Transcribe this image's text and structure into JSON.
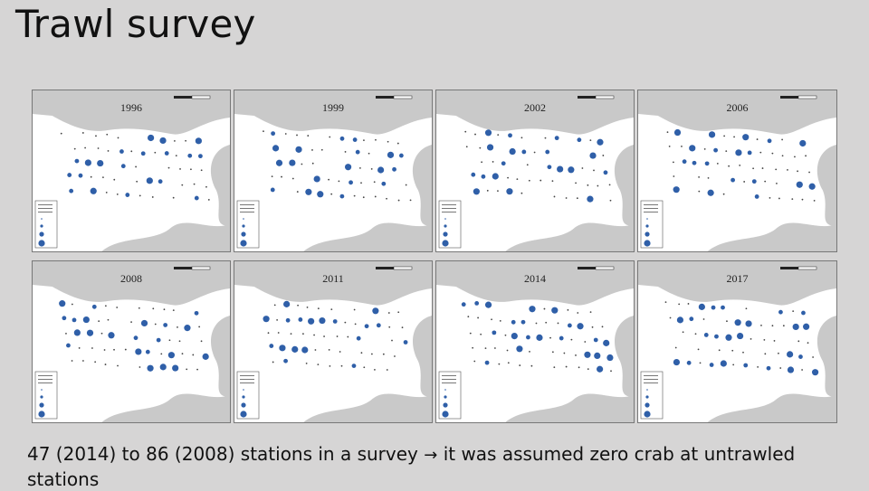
{
  "slide": {
    "title": "Trawl survey",
    "caption_before": "47 (2014) to 86 (2008) stations in a survey",
    "caption_arrow": "→",
    "caption_after": " it was assumed zero crab at untrawled stations"
  },
  "maps": [
    {
      "year": "1996"
    },
    {
      "year": "1999"
    },
    {
      "year": "2002"
    },
    {
      "year": "2006"
    },
    {
      "year": "2008"
    },
    {
      "year": "2011"
    },
    {
      "year": "2014"
    },
    {
      "year": "2017"
    }
  ],
  "colors": {
    "background": "#d6d5d5",
    "land": "#c9c9c9",
    "water": "#ffffff",
    "station": "#2f5fa8"
  }
}
